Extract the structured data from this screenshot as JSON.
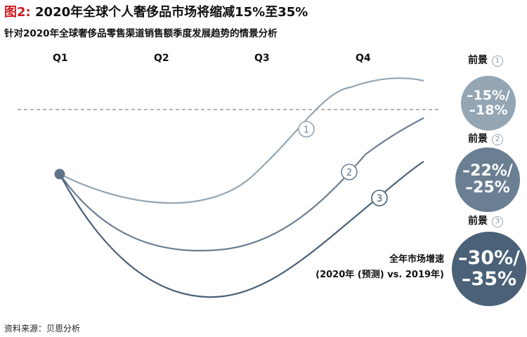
{
  "header": {
    "figure_label": "图2:",
    "title": "2020年全球个人奢侈品市场将缩减15%至35%",
    "subtitle": "针对2020年全球奢侈品零售渠道销售额季度发展趋势的情景分析"
  },
  "chart_data": {
    "type": "line",
    "categories": [
      "Q1",
      "Q2",
      "Q3",
      "Q4"
    ],
    "baseline_dashed": true,
    "series": [
      {
        "marker": "1",
        "color": "#94a5b3"
      },
      {
        "marker": "2",
        "color": "#6b7f93"
      },
      {
        "marker": "3",
        "color": "#4a6178"
      }
    ]
  },
  "scenarios": [
    {
      "label": "前景",
      "num": "1",
      "range_line1": "–15%/",
      "range_line2": "–18%",
      "color": "#94a5b3"
    },
    {
      "label": "前景",
      "num": "2",
      "range_line1": "–22%/",
      "range_line2": "–25%",
      "color": "#6b7f93"
    },
    {
      "label": "前景",
      "num": "3",
      "range_line1": "–30%/",
      "range_line2": "–35%",
      "color": "#4a6178"
    }
  ],
  "growth_label": {
    "line1": "全年市场增速",
    "line2": "(2020年 (预测) vs. 2019年)"
  },
  "source": "资料来源：贝恩分析"
}
